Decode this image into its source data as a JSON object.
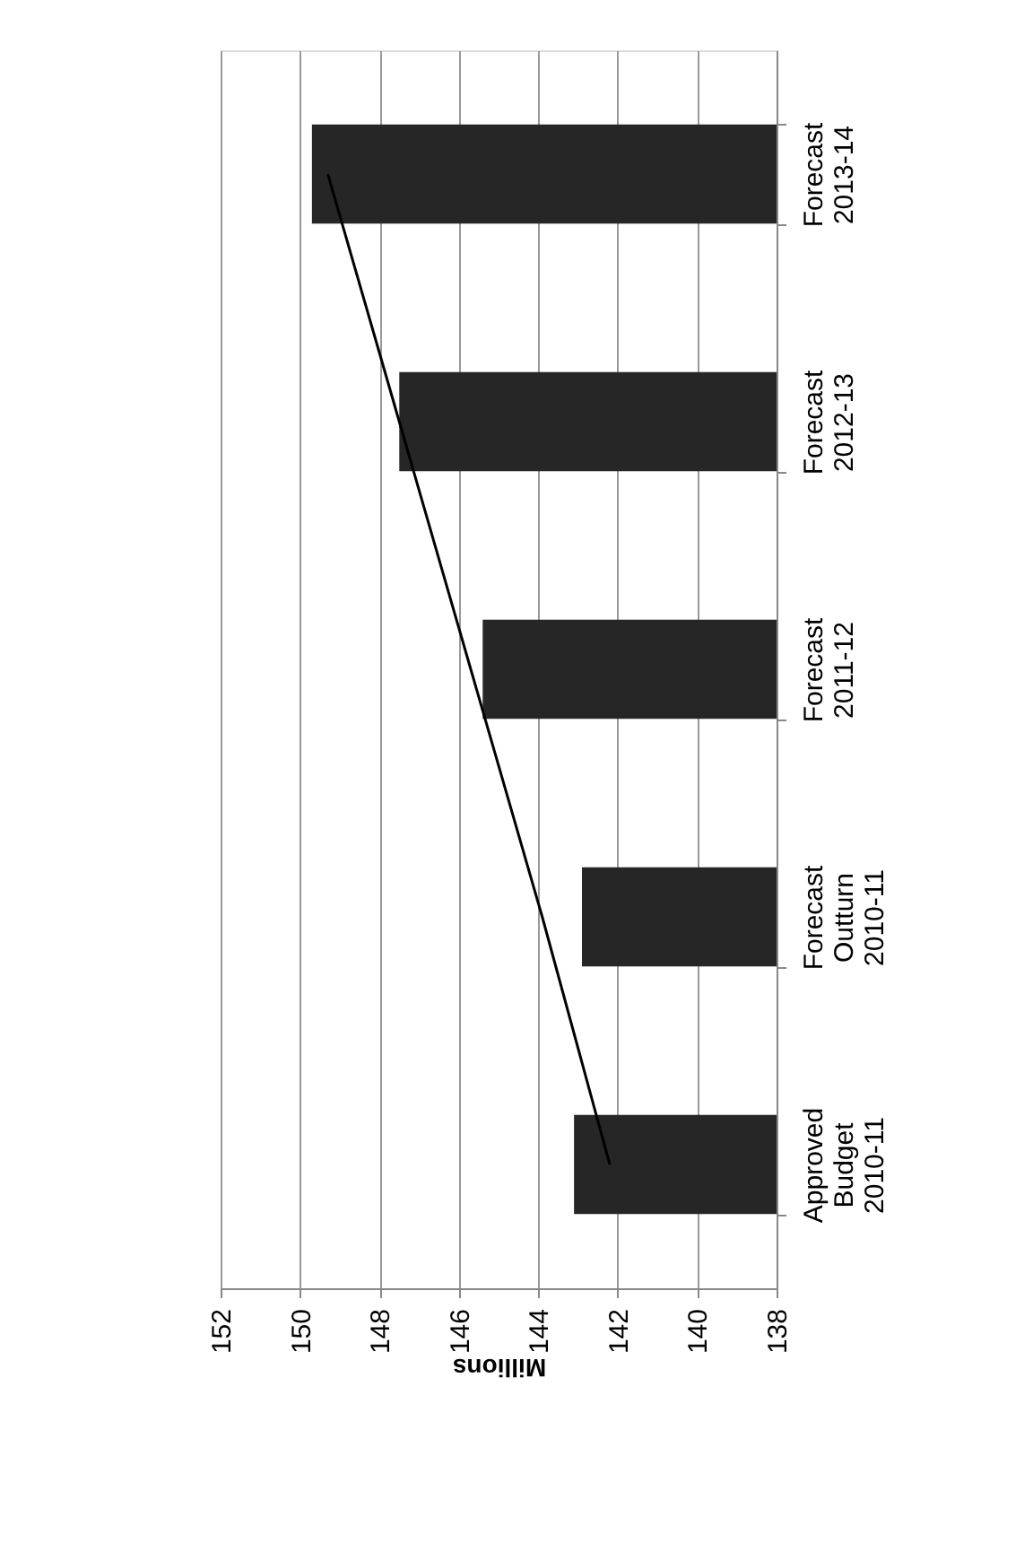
{
  "chart_data": {
    "type": "bar",
    "orientation": "horizontal",
    "xlabel": "Millions",
    "categories": [
      "Forecast\n2013-14",
      "Forecast\n2012-13",
      "Forecast\n2011-12",
      "Forecast\nOutturn\n2010-11",
      "Approved\nBudget\n2010-11"
    ],
    "series": [
      {
        "color": "#262626",
        "values": [
          149.7,
          147.5,
          145.4,
          142.9,
          143.1
        ]
      },
      {
        "type": "line",
        "color": "#000000",
        "values": [
          149.3,
          147.5,
          145.7,
          143.9,
          142.2
        ]
      }
    ],
    "xlim": [
      152,
      138
    ],
    "xticks": [
      152,
      150,
      148,
      146,
      144,
      142,
      140,
      138
    ],
    "grid": "x"
  }
}
